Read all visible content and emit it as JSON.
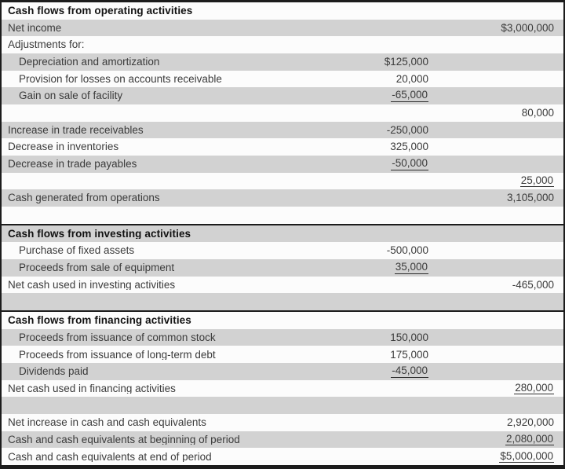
{
  "colors": {
    "row_shade": "#d2d2d2",
    "row_bg": "#fcfcfc",
    "border": "#1c1c1c",
    "text": "#3b3b3b",
    "header_text": "#121212",
    "underline": "#2e2e2e"
  },
  "table": {
    "rows": [
      {
        "label": "Cash flows from operating activities",
        "type": "section-header"
      },
      {
        "label": "Net income",
        "right": "$3,000,000"
      },
      {
        "label": "Adjustments for:"
      },
      {
        "label": "Depreciation and amortization",
        "mid": "$125,000",
        "indent": true
      },
      {
        "label": "Provision for losses on accounts receivable",
        "mid": "20,000",
        "indent": true
      },
      {
        "label": "Gain on sale of facility",
        "mid": "-65,000",
        "mid_underline": true,
        "indent": true
      },
      {
        "label": "",
        "right": "80,000"
      },
      {
        "label": "Increase in trade receivables",
        "mid": "-250,000"
      },
      {
        "label": "Decrease in inventories",
        "mid": "325,000"
      },
      {
        "label": "Decrease in trade payables",
        "mid": "-50,000",
        "mid_underline": true
      },
      {
        "label": "",
        "right": "25,000",
        "right_underline": true
      },
      {
        "label": "Cash generated from operations",
        "right": "3,105,000"
      },
      {
        "label": ""
      },
      {
        "label": "Cash flows from investing activities",
        "type": "section-header",
        "top_border": true
      },
      {
        "label": "Purchase of fixed assets",
        "mid": "-500,000",
        "indent": true
      },
      {
        "label": "Proceeds from sale of equipment",
        "mid": "35,000",
        "mid_underline": true,
        "indent": true
      },
      {
        "label": "Net cash used in investing activities",
        "right": "-465,000"
      },
      {
        "label": ""
      },
      {
        "label": "Cash flows from financing activities",
        "type": "section-header",
        "top_border": true
      },
      {
        "label": "Proceeds from issuance of common stock",
        "mid": "150,000",
        "indent": true
      },
      {
        "label": "Proceeds from issuance of long-term debt",
        "mid": "175,000",
        "indent": true
      },
      {
        "label": "Dividends paid",
        "mid": "-45,000",
        "mid_underline": true,
        "indent": true
      },
      {
        "label": "Net cash used in financing activities",
        "right": "280,000",
        "right_underline": true
      },
      {
        "label": ""
      },
      {
        "label": "Net increase in cash and cash equivalents",
        "right": "2,920,000"
      },
      {
        "label": "Cash and cash equivalents at beginning of period",
        "right": "2,080,000",
        "right_underline": true
      },
      {
        "label": "Cash and cash equivalents at end of period",
        "right": "$5,000,000",
        "right_underline": true
      }
    ]
  }
}
